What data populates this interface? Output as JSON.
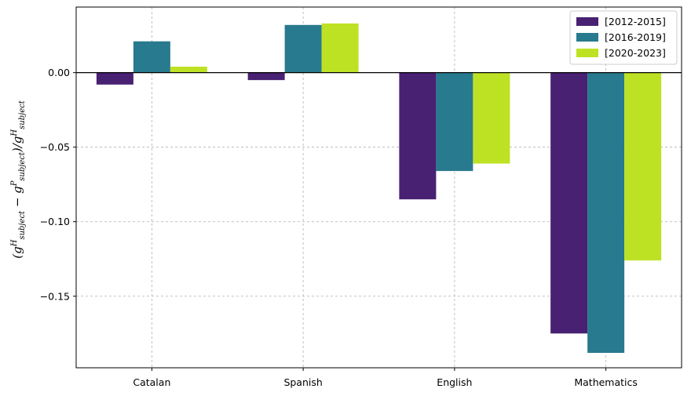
{
  "chart_data": {
    "type": "bar",
    "title": "",
    "xlabel": "",
    "ylabel": {
      "prefix": "(g",
      "sup1": "H",
      "sub1": "subject",
      "minus": " − g",
      "sup2": "P",
      "sub2": "subject",
      "mid": ")/g",
      "sup3": "H",
      "sub3": "subject"
    },
    "categories": [
      "Catalan",
      "Spanish",
      "English",
      "Mathematics"
    ],
    "series": [
      {
        "name": "[2012-2015]",
        "color": "#482173",
        "values": [
          -0.008,
          -0.005,
          -0.085,
          -0.175
        ]
      },
      {
        "name": "[2016-2019]",
        "color": "#287a8e",
        "values": [
          0.021,
          0.032,
          -0.066,
          -0.188
        ]
      },
      {
        "name": "[2020-2023]",
        "color": "#bde224",
        "values": [
          0.004,
          0.033,
          -0.061,
          -0.126
        ]
      }
    ],
    "ylim": [
      -0.198,
      0.044
    ],
    "yticks": [
      0.0,
      -0.05,
      -0.1,
      -0.15
    ],
    "ytick_labels": [
      "0.00",
      "−0.05",
      "−0.10",
      "−0.15"
    ],
    "grid": true,
    "legend_placement": "top-right"
  }
}
